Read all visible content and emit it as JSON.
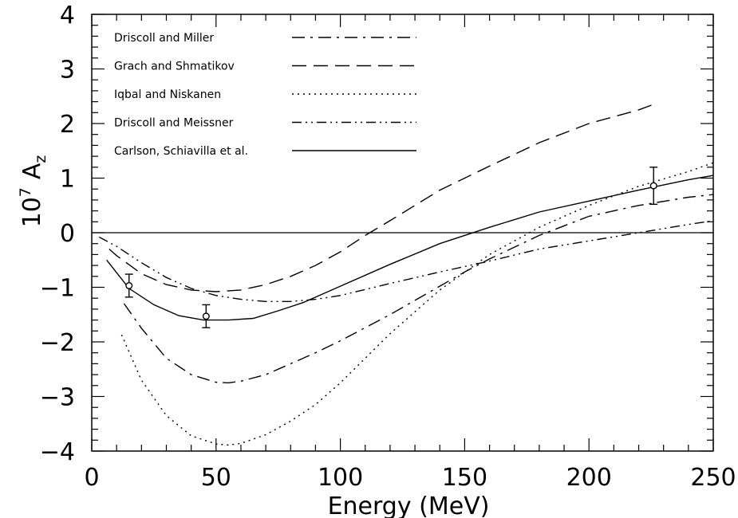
{
  "chart_data": {
    "type": "line",
    "title": "",
    "xlabel": "Energy (MeV)",
    "ylabel": {
      "base": "10",
      "exponent": "7",
      "symbol": "A",
      "subscript": "z"
    },
    "xlim": [
      0,
      250
    ],
    "ylim": [
      -4,
      4
    ],
    "xticks": [
      0,
      50,
      100,
      150,
      200,
      250
    ],
    "yticks": [
      -4,
      -3,
      -2,
      -1,
      0,
      1,
      2,
      3,
      4
    ],
    "legend_position": "top-left",
    "series": [
      {
        "name": "Driscoll and Miller",
        "dash": "dashdot",
        "x": [
          13,
          20,
          30,
          40,
          50,
          55,
          60,
          70,
          80,
          90,
          100,
          120,
          140,
          150,
          160,
          180,
          200,
          220,
          240,
          250
        ],
        "y": [
          -1.3,
          -1.75,
          -2.3,
          -2.6,
          -2.74,
          -2.75,
          -2.72,
          -2.6,
          -2.4,
          -2.2,
          -1.98,
          -1.5,
          -0.98,
          -0.72,
          -0.48,
          -0.05,
          0.3,
          0.5,
          0.65,
          0.7
        ]
      },
      {
        "name": "Grach and Shmatikov",
        "dash": "dashed",
        "x": [
          7,
          10,
          20,
          30,
          40,
          50,
          60,
          70,
          80,
          90,
          100,
          110,
          120,
          140,
          160,
          180,
          200,
          220,
          226
        ],
        "y": [
          -0.3,
          -0.42,
          -0.75,
          -0.95,
          -1.05,
          -1.08,
          -1.05,
          -0.95,
          -0.8,
          -0.6,
          -0.35,
          -0.05,
          0.22,
          0.78,
          1.22,
          1.65,
          2.0,
          2.25,
          2.35
        ]
      },
      {
        "name": "Iqbal and Niskanen",
        "dash": "dotted",
        "x": [
          12,
          20,
          30,
          40,
          50,
          55,
          60,
          70,
          80,
          90,
          100,
          110,
          120,
          140,
          160,
          180,
          200,
          220,
          240,
          250
        ],
        "y": [
          -1.87,
          -2.7,
          -3.35,
          -3.72,
          -3.87,
          -3.89,
          -3.86,
          -3.7,
          -3.45,
          -3.15,
          -2.75,
          -2.3,
          -1.85,
          -1.05,
          -0.4,
          0.1,
          0.5,
          0.85,
          1.12,
          1.28
        ]
      },
      {
        "name": "Driscoll and Meissner",
        "dash": "dashdotdot",
        "x": [
          3,
          10,
          20,
          30,
          40,
          50,
          60,
          70,
          80,
          90,
          100,
          120,
          140,
          160,
          180,
          200,
          220,
          240,
          250
        ],
        "y": [
          -0.08,
          -0.25,
          -0.55,
          -0.82,
          -1.02,
          -1.15,
          -1.22,
          -1.26,
          -1.26,
          -1.22,
          -1.15,
          -0.93,
          -0.72,
          -0.52,
          -0.3,
          -0.15,
          0.0,
          0.15,
          0.22
        ]
      },
      {
        "name": "Carlson, Schiavilla et al.",
        "dash": "solid",
        "x": [
          6,
          15,
          25,
          35,
          45,
          55,
          65,
          75,
          85,
          100,
          120,
          140,
          160,
          180,
          200,
          220,
          240,
          250
        ],
        "y": [
          -0.5,
          -1.02,
          -1.32,
          -1.52,
          -1.6,
          -1.6,
          -1.57,
          -1.43,
          -1.28,
          -0.98,
          -0.58,
          -0.2,
          0.1,
          0.38,
          0.58,
          0.78,
          0.97,
          1.05
        ]
      }
    ],
    "data_points": [
      {
        "x": 15,
        "y": -0.97,
        "err": 0.21
      },
      {
        "x": 46,
        "y": -1.53,
        "err": 0.21
      },
      {
        "x": 226,
        "y": 0.86,
        "err": 0.34
      }
    ],
    "reference_line": {
      "y": 0
    }
  }
}
